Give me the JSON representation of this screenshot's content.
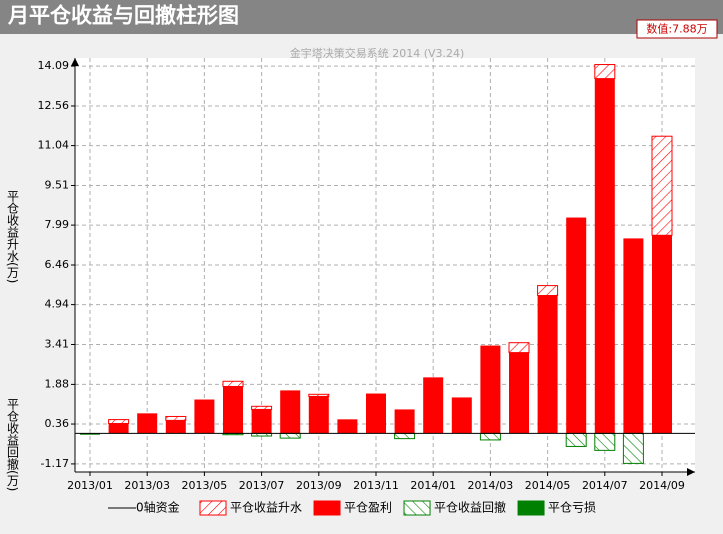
{
  "chart_data": {
    "type": "bar",
    "title": "月平仓收益与回撤柱形图",
    "value_display": "数值:7.88万",
    "watermark": "金宇塔决策交易系统 2014 (V3.24)",
    "y_label_top": "平仓收益升水(万)",
    "y_label_bottom": "平仓收益回撤(万)",
    "categories": [
      "2013/01",
      null,
      "2013/03",
      null,
      "2013/05",
      null,
      "2013/07",
      null,
      "2013/09",
      null,
      "2013/11",
      null,
      "2014/01",
      null,
      "2014/03",
      null,
      "2014/05",
      null,
      "2014/07",
      null,
      "2014/09"
    ],
    "zero_line": {
      "name": "0轴资金",
      "color": "#000000"
    },
    "series": [
      {
        "name": "平仓收益升水",
        "color": "#ff0000",
        "hatched": true,
        "role": "premium",
        "values": [
          null,
          0.15,
          null,
          0.15,
          null,
          0.2,
          0.12,
          null,
          0.08,
          null,
          null,
          null,
          null,
          null,
          null,
          0.38,
          0.38,
          null,
          0.54,
          null,
          3.8
        ]
      },
      {
        "name": "平仓盈利",
        "color": "#ff0000",
        "hatched": false,
        "role": "profit",
        "values": [
          null,
          0.38,
          0.77,
          0.5,
          1.3,
          1.8,
          0.92,
          1.65,
          1.42,
          0.54,
          1.53,
          0.92,
          2.15,
          1.38,
          3.37,
          3.1,
          5.29,
          8.28,
          13.61,
          7.48,
          7.6
        ]
      },
      {
        "name": "平仓收益回撤",
        "color": "#008000",
        "hatched": true,
        "role": "drawdown",
        "values": [
          null,
          null,
          null,
          null,
          null,
          -0.05,
          -0.1,
          -0.18,
          null,
          null,
          null,
          -0.2,
          null,
          null,
          -0.25,
          null,
          null,
          -0.5,
          -0.65,
          -1.15,
          null
        ]
      },
      {
        "name": "平仓亏损",
        "color": "#008000",
        "hatched": false,
        "role": "loss",
        "values": [
          -0.05,
          null,
          null,
          null,
          null,
          null,
          null,
          null,
          null,
          null,
          null,
          null,
          null,
          null,
          null,
          null,
          null,
          null,
          null,
          null,
          null
        ]
      }
    ],
    "ylim": [
      -1.48,
      14.4
    ],
    "yticks": [
      -1.17,
      0.36,
      1.88,
      3.41,
      4.94,
      6.46,
      7.99,
      9.51,
      11.04,
      12.56,
      14.09
    ],
    "grid": true
  }
}
